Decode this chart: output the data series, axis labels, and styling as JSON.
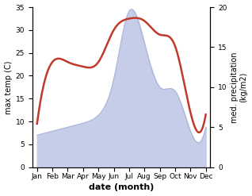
{
  "months": [
    "Jan",
    "Feb",
    "Mar",
    "Apr",
    "May",
    "Jun",
    "Jul",
    "Aug",
    "Sep",
    "Oct",
    "Nov",
    "Dec"
  ],
  "month_positions": [
    0,
    1,
    2,
    3,
    4,
    5,
    6,
    7,
    8,
    9,
    10,
    11
  ],
  "temperature": [
    9.5,
    23.0,
    23.0,
    22.0,
    23.0,
    30.0,
    32.5,
    32.0,
    29.0,
    26.5,
    12.0,
    11.5
  ],
  "precipitation_right": [
    4.0,
    4.5,
    5.0,
    5.5,
    6.5,
    11.0,
    19.5,
    15.5,
    10.0,
    9.5,
    4.5,
    5.0
  ],
  "temp_color": "#c0392b",
  "precip_fill_color": "#c5cde8",
  "precip_line_color": "#aab4d8",
  "background_color": "#ffffff",
  "left_ylabel": "max temp (C)",
  "right_ylabel": "med. precipitation\n(kg/m2)",
  "xlabel": "date (month)",
  "ylim_left": [
    0,
    35
  ],
  "ylim_right": [
    0,
    20
  ],
  "label_fontsize": 7,
  "tick_fontsize": 6.5,
  "xlabel_fontsize": 8,
  "temp_linewidth": 1.8,
  "precip_linewidth": 0.8
}
